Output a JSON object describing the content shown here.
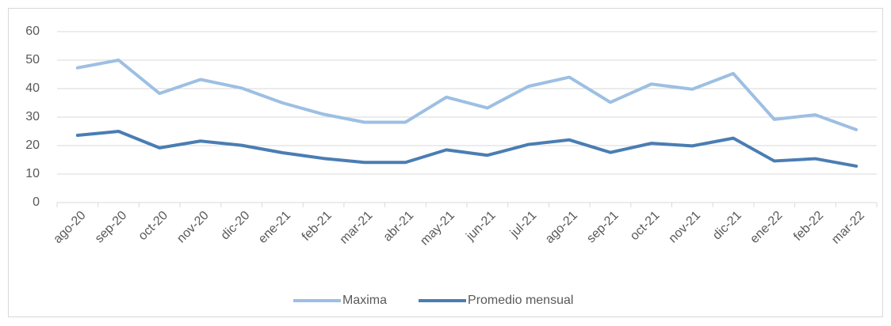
{
  "chart_data": {
    "type": "line",
    "categories": [
      "ago-20",
      "sep-20",
      "oct-20",
      "nov-20",
      "dic-20",
      "ene-21",
      "feb-21",
      "mar-21",
      "abr-21",
      "may-21",
      "jun-21",
      "jul-21",
      "ago-21",
      "sep-21",
      "oct-21",
      "nov-21",
      "dic-21",
      "ene-22",
      "feb-22",
      "mar-22"
    ],
    "series": [
      {
        "name": "Maxima",
        "color": "#9dbfe3",
        "values": [
          47.3,
          50,
          38.3,
          43.2,
          40.2,
          35,
          31,
          28.2,
          28.2,
          37,
          33.2,
          40.8,
          44,
          35.2,
          41.6,
          39.8,
          45.3,
          29.2,
          30.8,
          25.6
        ]
      },
      {
        "name": "Promedio mensual",
        "color": "#4a7db3",
        "values": [
          23.6,
          25,
          19.2,
          21.6,
          20.1,
          17.5,
          15.5,
          14.1,
          14.1,
          18.5,
          16.6,
          20.4,
          22,
          17.6,
          20.8,
          19.9,
          22.6,
          14.6,
          15.4,
          12.8
        ]
      }
    ],
    "ylim": [
      0,
      60
    ],
    "yticks": [
      0,
      10,
      20,
      30,
      40,
      50,
      60
    ],
    "grid": true,
    "legend": "bottom"
  }
}
